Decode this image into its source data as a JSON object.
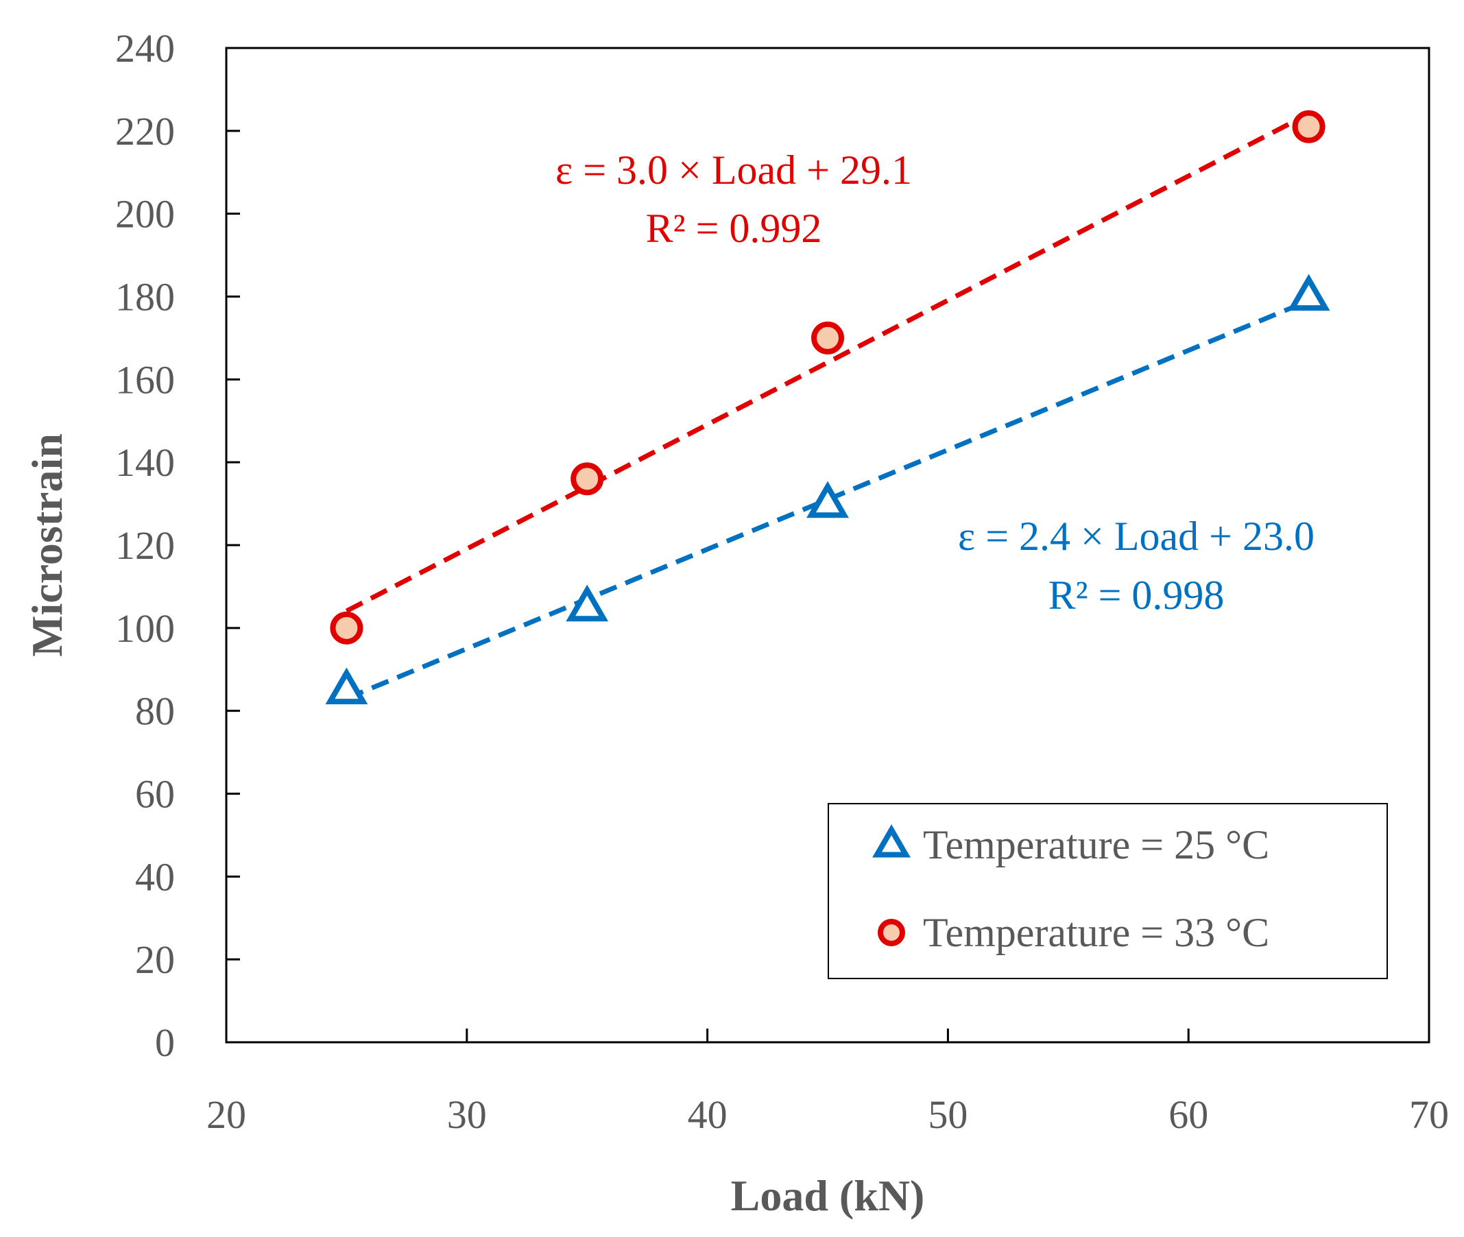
{
  "chart_data": {
    "type": "scatter",
    "xlabel": "Load (kN)",
    "ylabel": "Microstrain",
    "xlim": [
      20,
      70
    ],
    "ylim": [
      0,
      240
    ],
    "xticks": [
      "20",
      "30",
      "40",
      "50",
      "60",
      "70"
    ],
    "yticks": [
      "0",
      "20",
      "40",
      "60",
      "80",
      "100",
      "120",
      "140",
      "160",
      "180",
      "200",
      "220",
      "240"
    ],
    "grid": false,
    "legend_position": "bottom-right",
    "series": [
      {
        "name": "Temperature = 25 °C",
        "marker": "triangle",
        "color": "#0070C0",
        "x": [
          25,
          35,
          45,
          65
        ],
        "y": [
          85,
          105,
          130,
          180
        ],
        "trendline": {
          "slope": 2.4,
          "intercept": 23.0,
          "x_range": [
            25,
            65
          ]
        },
        "equation": "ε = 2.4 × Load + 23.0",
        "r2_label": "R² = 0.998"
      },
      {
        "name": "Temperature = 33 °C",
        "marker": "circle",
        "color": "#E00000",
        "fill": "#F8CBAD",
        "x": [
          25,
          35,
          45,
          65
        ],
        "y": [
          100,
          136,
          170,
          221
        ],
        "trendline": {
          "slope": 3.0,
          "intercept": 29.1,
          "x_range": [
            25,
            65
          ]
        },
        "equation": "ε = 3.0 × Load + 29.1",
        "r2_label": "R² = 0.992"
      }
    ]
  }
}
